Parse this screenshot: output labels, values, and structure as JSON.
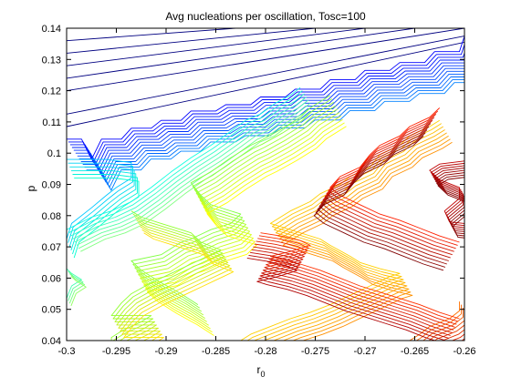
{
  "chart_data": {
    "type": "contour",
    "title": "Avg nucleations per oscillation, Tosc=100",
    "xlabel": "r",
    "xlabel_sub": "0",
    "ylabel": "p",
    "xlim": [
      -0.3,
      -0.26
    ],
    "ylim": [
      0.04,
      0.14
    ],
    "xticks": [
      -0.3,
      -0.295,
      -0.29,
      -0.285,
      -0.28,
      -0.275,
      -0.27,
      -0.265,
      -0.26
    ],
    "xtick_labels": [
      "-0.3",
      "-0.295",
      "-0.29",
      "-0.285",
      "-0.28",
      "-0.275",
      "-0.27",
      "-0.265",
      "-0.26"
    ],
    "yticks": [
      0.04,
      0.05,
      0.06,
      0.07,
      0.08,
      0.09,
      0.1,
      0.11,
      0.12,
      0.13,
      0.14
    ],
    "ytick_labels": [
      "0.04",
      "0.05",
      "0.06",
      "0.07",
      "0.08",
      "0.09",
      "0.1",
      "0.11",
      "0.12",
      "0.13",
      "0.14"
    ],
    "grid": false,
    "colormap": "jet",
    "contour_groups": [
      {
        "name": "upper-left diagonal lines (dark navy)",
        "color": "#000080",
        "lines": [
          [
            [
              -0.3,
              0.12
            ],
            [
              -0.26,
              0.14
            ]
          ],
          [
            [
              -0.3,
              0.124
            ],
            [
              -0.265,
              0.14
            ]
          ],
          [
            [
              -0.3,
              0.128
            ],
            [
              -0.27,
              0.14
            ]
          ],
          [
            [
              -0.3,
              0.132
            ],
            [
              -0.275,
              0.14
            ]
          ],
          [
            [
              -0.3,
              0.136
            ],
            [
              -0.283,
              0.14
            ]
          ],
          [
            [
              -0.3,
              0.1125
            ],
            [
              -0.26,
              0.1375
            ]
          ],
          [
            [
              -0.3,
              0.1085
            ],
            [
              -0.26,
              0.1355
            ]
          ]
        ]
      },
      {
        "name": "blue staircase front",
        "color_start": "#0000ff",
        "color_end": "#0080ff",
        "count": 12,
        "offset_x": 0.00018,
        "offset_y": -0.0009,
        "points": [
          [
            -0.3,
            0.1045
          ],
          [
            -0.2985,
            0.1045
          ],
          [
            -0.2975,
            0.098
          ],
          [
            -0.2965,
            0.1045
          ],
          [
            -0.2945,
            0.1045
          ],
          [
            -0.2935,
            0.108
          ],
          [
            -0.2915,
            0.108
          ],
          [
            -0.2905,
            0.1105
          ],
          [
            -0.2885,
            0.1105
          ],
          [
            -0.2875,
            0.1135
          ],
          [
            -0.285,
            0.1135
          ],
          [
            -0.284,
            0.1155
          ],
          [
            -0.2815,
            0.1155
          ],
          [
            -0.2805,
            0.118
          ],
          [
            -0.278,
            0.118
          ],
          [
            -0.277,
            0.1205
          ],
          [
            -0.2745,
            0.1205
          ],
          [
            -0.2735,
            0.1235
          ],
          [
            -0.271,
            0.1235
          ],
          [
            -0.27,
            0.1265
          ],
          [
            -0.2675,
            0.1265
          ],
          [
            -0.2665,
            0.129
          ],
          [
            -0.264,
            0.129
          ],
          [
            -0.263,
            0.1325
          ],
          [
            -0.2605,
            0.1325
          ],
          [
            -0.26,
            0.1375
          ]
        ]
      },
      {
        "name": "cyan contours",
        "color_start": "#00c8ff",
        "color_end": "#00ffd0",
        "count": 6,
        "offset_x": 0.00015,
        "offset_y": -0.0012,
        "points": [
          [
            -0.3,
            0.098
          ],
          [
            -0.296,
            0.098
          ],
          [
            -0.2935,
            0.097
          ],
          [
            -0.2935,
            0.092
          ],
          [
            -0.295,
            0.089
          ],
          [
            -0.296,
            0.0865
          ],
          [
            -0.2975,
            0.0825
          ],
          [
            -0.2995,
            0.0775
          ],
          [
            -0.3,
            0.0725
          ]
        ]
      },
      {
        "name": "cyan-green contours",
        "color_start": "#10ffe0",
        "color_end": "#80ff80",
        "count": 8,
        "offset_x": 0.0002,
        "offset_y": -0.001,
        "points": [
          [
            -0.3,
            0.0755
          ],
          [
            -0.2975,
            0.0795
          ],
          [
            -0.2955,
            0.0815
          ],
          [
            -0.2935,
            0.0845
          ],
          [
            -0.2915,
            0.089
          ],
          [
            -0.2895,
            0.094
          ],
          [
            -0.2875,
            0.0985
          ],
          [
            -0.2855,
            0.1025
          ],
          [
            -0.2835,
            0.107
          ],
          [
            -0.282,
            0.1105
          ],
          [
            -0.2805,
            0.1125
          ],
          [
            -0.279,
            0.116
          ],
          [
            -0.2775,
            0.1185
          ],
          [
            -0.2765,
            0.121
          ]
        ]
      },
      {
        "name": "green-yellow diagonal band",
        "color_start": "#80ff40",
        "color_end": "#ffff00",
        "count": 10,
        "offset_x": 0.00018,
        "offset_y": -0.0011,
        "points": [
          [
            -0.2868,
            0.0515
          ],
          [
            -0.2885,
            0.055
          ],
          [
            -0.2905,
            0.0585
          ],
          [
            -0.2925,
            0.0625
          ],
          [
            -0.2935,
            0.0655
          ],
          [
            -0.2905,
            0.0675
          ],
          [
            -0.2885,
            0.0715
          ],
          [
            -0.2875,
            0.0725
          ],
          [
            -0.2855,
            0.0755
          ],
          [
            -0.2835,
            0.0775
          ],
          [
            -0.2825,
            0.0805
          ],
          [
            -0.2855,
            0.0835
          ],
          [
            -0.2865,
            0.0865
          ],
          [
            -0.2875,
            0.0905
          ],
          [
            -0.2855,
            0.094
          ],
          [
            -0.2835,
            0.0985
          ],
          [
            -0.2815,
            0.1025
          ],
          [
            -0.2805,
            0.104
          ],
          [
            -0.2785,
            0.1075
          ],
          [
            -0.2765,
            0.1115
          ],
          [
            -0.2755,
            0.1145
          ],
          [
            -0.2735,
            0.1185
          ]
        ]
      },
      {
        "name": "green-yellow lower-left band",
        "color_start": "#90ff30",
        "color_end": "#ffe000",
        "count": 8,
        "offset_x": 0.00018,
        "offset_y": -0.001,
        "points": [
          [
            -0.2995,
            0.04
          ],
          [
            -0.2955,
            0.04
          ],
          [
            -0.2955,
            0.041
          ],
          [
            -0.2945,
            0.043
          ],
          [
            -0.2925,
            0.046
          ],
          [
            -0.2915,
            0.048
          ],
          [
            -0.2955,
            0.048
          ],
          [
            -0.2945,
            0.052
          ],
          [
            -0.2935,
            0.055
          ],
          [
            -0.2915,
            0.0585
          ],
          [
            -0.2895,
            0.0615
          ],
          [
            -0.2875,
            0.0645
          ],
          [
            -0.2855,
            0.0675
          ],
          [
            -0.2845,
            0.069
          ],
          [
            -0.2865,
            0.0715
          ],
          [
            -0.2875,
            0.0745
          ],
          [
            -0.2885,
            0.0755
          ],
          [
            -0.2905,
            0.0775
          ],
          [
            -0.2925,
            0.0795
          ],
          [
            -0.2935,
            0.0815
          ]
        ]
      },
      {
        "name": "small cyan-green marker at left",
        "color_start": "#40ffb0",
        "color_end": "#90ff60",
        "count": 4,
        "offset_x": 0.00015,
        "offset_y": -0.0008,
        "points": [
          [
            -0.3,
            0.063
          ],
          [
            -0.2995,
            0.0615
          ],
          [
            -0.2985,
            0.0595
          ],
          [
            -0.2995,
            0.0575
          ],
          [
            -0.3,
            0.0535
          ]
        ]
      },
      {
        "name": "yellow-orange contours",
        "color_start": "#ffd000",
        "color_end": "#ff9000",
        "count": 8,
        "offset_x": 0.00018,
        "offset_y": -0.001,
        "points": [
          [
            -0.2825,
            0.04
          ],
          [
            -0.2815,
            0.042
          ],
          [
            -0.2795,
            0.0445
          ],
          [
            -0.2775,
            0.047
          ],
          [
            -0.2755,
            0.049
          ],
          [
            -0.2735,
            0.0515
          ],
          [
            -0.2715,
            0.0545
          ],
          [
            -0.2695,
            0.0575
          ],
          [
            -0.2675,
            0.0605
          ],
          [
            -0.2665,
            0.0615
          ],
          [
            -0.2685,
            0.063
          ],
          [
            -0.2705,
            0.065
          ],
          [
            -0.2715,
            0.067
          ],
          [
            -0.2735,
            0.0705
          ],
          [
            -0.2745,
            0.0725
          ],
          [
            -0.2765,
            0.0745
          ],
          [
            -0.2785,
            0.0765
          ],
          [
            -0.2795,
            0.0775
          ],
          [
            -0.2785,
            0.0795
          ],
          [
            -0.2775,
            0.0815
          ],
          [
            -0.2755,
            0.0845
          ],
          [
            -0.2745,
            0.087
          ],
          [
            -0.2725,
            0.09
          ],
          [
            -0.2715,
            0.0925
          ],
          [
            -0.2695,
            0.0955
          ],
          [
            -0.2685,
            0.0995
          ],
          [
            -0.2665,
            0.1025
          ],
          [
            -0.2655,
            0.1055
          ],
          [
            -0.2635,
            0.1085
          ],
          [
            -0.2625,
            0.1105
          ]
        ]
      },
      {
        "name": "orange-red contours",
        "color_start": "#ff7000",
        "color_end": "#d00000",
        "count": 10,
        "offset_x": 0.00018,
        "offset_y": -0.001,
        "points": [
          [
            -0.2655,
            0.04
          ],
          [
            -0.2645,
            0.042
          ],
          [
            -0.2635,
            0.0445
          ],
          [
            -0.2615,
            0.047
          ],
          [
            -0.2605,
            0.0495
          ],
          [
            -0.2605,
            0.0525
          ]
        ]
      },
      {
        "name": "red contours",
        "color_start": "#ff3000",
        "color_end": "#b00000",
        "count": 10,
        "offset_x": -0.00015,
        "offset_y": -0.0009,
        "points": [
          [
            -0.2805,
            0.0745
          ],
          [
            -0.2785,
            0.0735
          ],
          [
            -0.2765,
            0.072
          ],
          [
            -0.2755,
            0.0705
          ],
          [
            -0.2775,
            0.0685
          ],
          [
            -0.2795,
            0.067
          ],
          [
            -0.2785,
            0.066
          ],
          [
            -0.2765,
            0.0645
          ],
          [
            -0.2745,
            0.0625
          ],
          [
            -0.2725,
            0.06
          ],
          [
            -0.2705,
            0.0575
          ],
          [
            -0.2685,
            0.0555
          ],
          [
            -0.2665,
            0.0535
          ],
          [
            -0.2645,
            0.0515
          ],
          [
            -0.2625,
            0.049
          ],
          [
            -0.2605,
            0.047
          ]
        ]
      },
      {
        "name": "dark red contours (upper right)",
        "color_start": "#ff2000",
        "color_end": "#800000",
        "count": 10,
        "offset_x": -0.00018,
        "offset_y": -0.001,
        "points": [
          [
            -0.2625,
            0.1145
          ],
          [
            -0.2635,
            0.1115
          ],
          [
            -0.2655,
            0.1085
          ],
          [
            -0.2665,
            0.1055
          ],
          [
            -0.2685,
            0.1025
          ],
          [
            -0.2695,
            0.0995
          ],
          [
            -0.2705,
            0.0955
          ],
          [
            -0.2725,
            0.0925
          ],
          [
            -0.2735,
            0.089
          ],
          [
            -0.2725,
            0.0865
          ],
          [
            -0.2705,
            0.0835
          ],
          [
            -0.2685,
            0.0805
          ],
          [
            -0.2665,
            0.0785
          ],
          [
            -0.2645,
            0.076
          ],
          [
            -0.2625,
            0.0735
          ],
          [
            -0.2605,
            0.0715
          ]
        ]
      },
      {
        "name": "dark red blob",
        "color_start": "#c00000",
        "color_end": "#800000",
        "count": 8,
        "offset_x": 0.00012,
        "offset_y": -0.0007,
        "points": [
          [
            -0.26,
            0.0975
          ],
          [
            -0.2625,
            0.0965
          ],
          [
            -0.2635,
            0.0945
          ],
          [
            -0.2625,
            0.0915
          ],
          [
            -0.2605,
            0.089
          ],
          [
            -0.2605,
            0.0855
          ],
          [
            -0.262,
            0.0815
          ],
          [
            -0.2615,
            0.078
          ],
          [
            -0.26,
            0.0775
          ]
        ]
      }
    ]
  }
}
